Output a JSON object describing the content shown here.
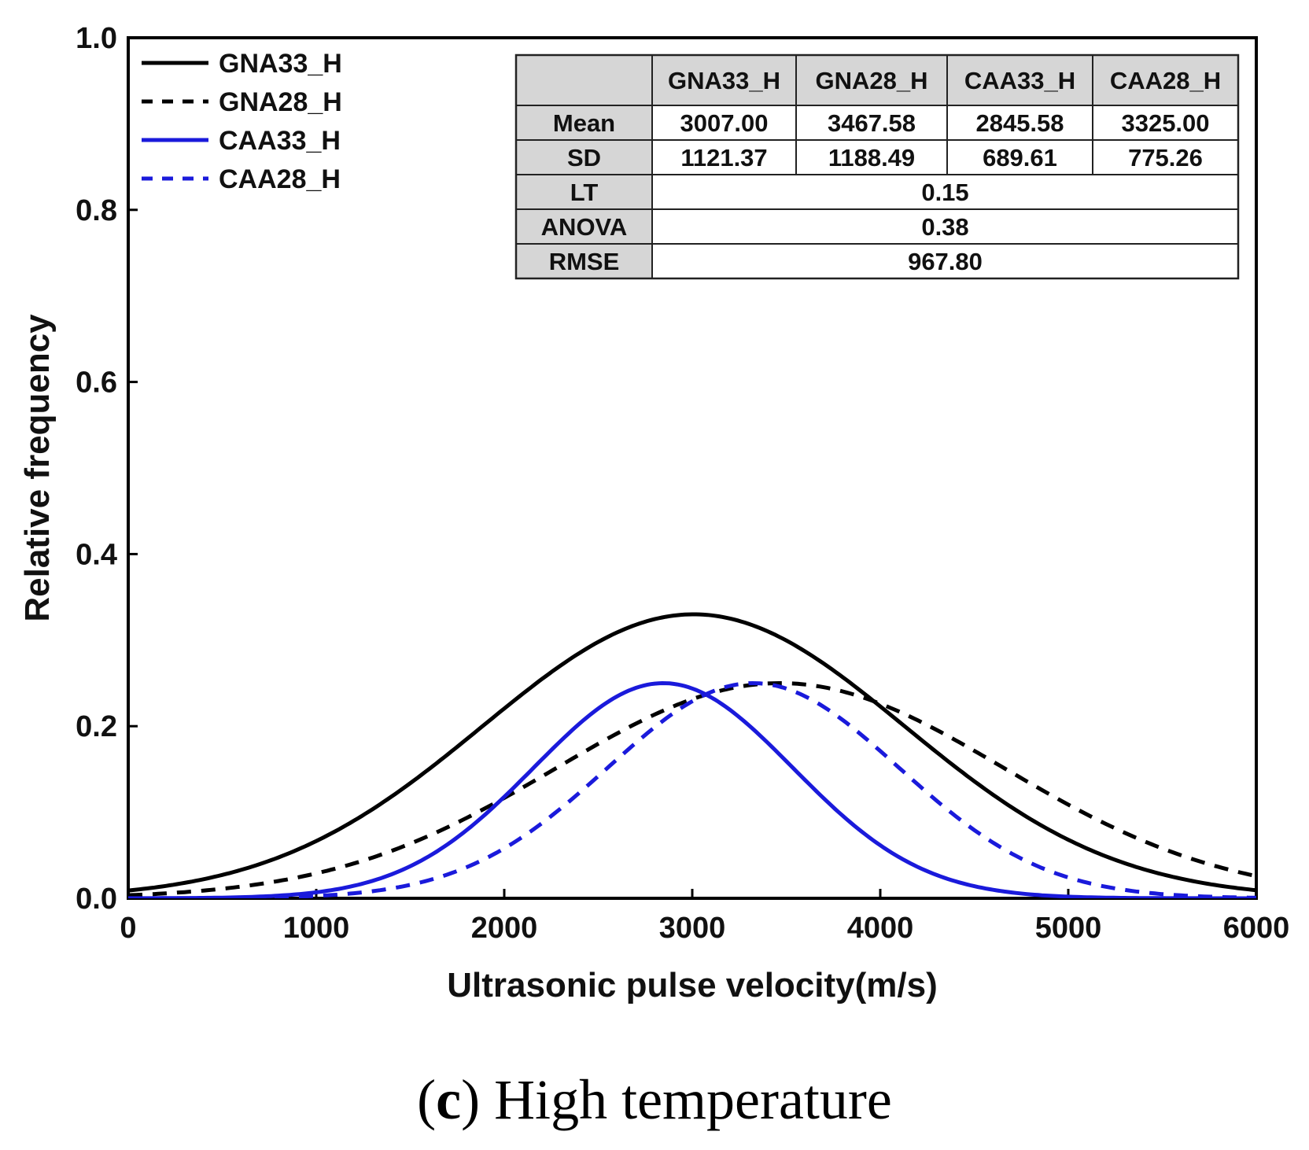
{
  "chart_data": {
    "type": "line",
    "xlabel": "Ultrasonic pulse velocity(m/s)",
    "ylabel": "Relative frequency",
    "xlim": [
      0,
      6000
    ],
    "ylim": [
      0,
      1.0
    ],
    "x_ticks": [
      "0",
      "1000",
      "2000",
      "3000",
      "4000",
      "5000",
      "6000"
    ],
    "y_ticks": [
      "0.0",
      "0.2",
      "0.4",
      "0.6",
      "0.8",
      "1.0"
    ],
    "legend_position": "top-left",
    "series": [
      {
        "name": "GNA33_H",
        "distribution": "normal",
        "mean": 3007.0,
        "sd": 1121.37,
        "peak": 0.33,
        "color": "#000000",
        "dashed": false
      },
      {
        "name": "GNA28_H",
        "distribution": "normal",
        "mean": 3467.58,
        "sd": 1188.49,
        "peak": 0.25,
        "color": "#000000",
        "dashed": true
      },
      {
        "name": "CAA33_H",
        "distribution": "normal",
        "mean": 2845.58,
        "sd": 689.61,
        "peak": 0.25,
        "color": "#1a1adb",
        "dashed": false
      },
      {
        "name": "CAA28_H",
        "distribution": "normal",
        "mean": 3325.0,
        "sd": 775.26,
        "peak": 0.25,
        "color": "#1a1adb",
        "dashed": true
      }
    ],
    "stats_table": {
      "columns": [
        "GNA33_H",
        "GNA28_H",
        "CAA33_H",
        "CAA28_H"
      ],
      "rows": [
        {
          "label": "Mean",
          "values": [
            "3007.00",
            "3467.58",
            "2845.58",
            "3325.00"
          ]
        },
        {
          "label": "SD",
          "values": [
            "1121.37",
            "1188.49",
            "689.61",
            "775.26"
          ]
        },
        {
          "label": "LT",
          "value": "0.15"
        },
        {
          "label": "ANOVA",
          "value": "0.38"
        },
        {
          "label": "RMSE",
          "value": "967.80"
        }
      ]
    }
  },
  "caption": {
    "letter": "c",
    "text": "High temperature"
  }
}
